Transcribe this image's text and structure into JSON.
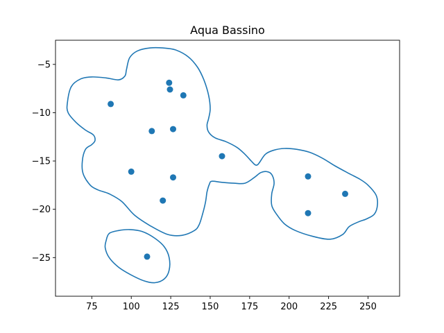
{
  "chart_data": {
    "type": "scatter",
    "title": "Aqua Bassino",
    "xlabel": "",
    "ylabel": "",
    "xlim": [
      52,
      270
    ],
    "ylim": [
      -29,
      -2.5
    ],
    "x_ticks": [
      75,
      100,
      125,
      150,
      175,
      200,
      225,
      250
    ],
    "y_ticks": [
      -5,
      -10,
      -15,
      -20,
      -25
    ],
    "grid": false,
    "legend": "none",
    "colors": {
      "series": "#1f77b4",
      "axes": "#000000",
      "background": "#ffffff"
    },
    "series": [
      {
        "points": [
          {
            "x": 87,
            "y": -9.1
          },
          {
            "x": 124,
            "y": -6.9
          },
          {
            "x": 124.5,
            "y": -7.6
          },
          {
            "x": 133,
            "y": -8.2
          },
          {
            "x": 113,
            "y": -11.9
          },
          {
            "x": 126.5,
            "y": -11.7
          },
          {
            "x": 157.5,
            "y": -14.5
          },
          {
            "x": 100,
            "y": -16.1
          },
          {
            "x": 126.5,
            "y": -16.7
          },
          {
            "x": 120,
            "y": -19.1
          },
          {
            "x": 212,
            "y": -16.6
          },
          {
            "x": 235.5,
            "y": -18.4
          },
          {
            "x": 212,
            "y": -20.4
          },
          {
            "x": 110,
            "y": -24.9
          }
        ]
      }
    ],
    "contours": [
      [
        [
          59.5,
          -9
        ],
        [
          62,
          -7.3
        ],
        [
          68,
          -6.5
        ],
        [
          75,
          -6.3
        ],
        [
          84,
          -6.4
        ],
        [
          92,
          -6.6
        ],
        [
          96,
          -6.2
        ],
        [
          97,
          -5.5
        ],
        [
          99,
          -4.3
        ],
        [
          104,
          -3.6
        ],
        [
          112,
          -3.3
        ],
        [
          120,
          -3.3
        ],
        [
          128,
          -3.5
        ],
        [
          136,
          -4.2
        ],
        [
          142,
          -5.3
        ],
        [
          146,
          -6.6
        ],
        [
          149,
          -8.2
        ],
        [
          150,
          -9.6
        ],
        [
          149,
          -10.6
        ],
        [
          148,
          -11.3
        ],
        [
          149,
          -12
        ],
        [
          153,
          -12.6
        ],
        [
          160,
          -13
        ],
        [
          167,
          -13.6
        ],
        [
          172,
          -14.3
        ],
        [
          176,
          -15
        ],
        [
          178.5,
          -15.4
        ],
        [
          180,
          -15.4
        ],
        [
          181.5,
          -15.1
        ],
        [
          185,
          -14.3
        ],
        [
          190,
          -13.9
        ],
        [
          197,
          -13.7
        ],
        [
          205,
          -13.8
        ],
        [
          213,
          -14.1
        ],
        [
          221,
          -14.7
        ],
        [
          229,
          -15.5
        ],
        [
          238,
          -16.3
        ],
        [
          245,
          -16.9
        ],
        [
          250,
          -17.5
        ],
        [
          255,
          -18.5
        ],
        [
          256,
          -19.5
        ],
        [
          254,
          -20.5
        ],
        [
          249,
          -21
        ],
        [
          244,
          -21.3
        ],
        [
          238,
          -21.8
        ],
        [
          234,
          -22.6
        ],
        [
          226,
          -23.1
        ],
        [
          215,
          -22.8
        ],
        [
          204,
          -22.2
        ],
        [
          197,
          -21.5
        ],
        [
          192,
          -20.5
        ],
        [
          189,
          -19.6
        ],
        [
          189,
          -18.4
        ],
        [
          190.5,
          -17.3
        ],
        [
          189,
          -16.4
        ],
        [
          186,
          -16.1
        ],
        [
          182,
          -16.2
        ],
        [
          178,
          -16.7
        ],
        [
          172,
          -17.3
        ],
        [
          165,
          -17.3
        ],
        [
          157,
          -17.2
        ],
        [
          151,
          -17.1
        ],
        [
          149.5,
          -17.4
        ],
        [
          148,
          -18.2
        ],
        [
          147,
          -19.3
        ],
        [
          145,
          -20.6
        ],
        [
          143,
          -21.6
        ],
        [
          140,
          -22.2
        ],
        [
          132,
          -22.7
        ],
        [
          123,
          -22.6
        ],
        [
          112,
          -21.7
        ],
        [
          102,
          -20.6
        ],
        [
          94,
          -19.2
        ],
        [
          86,
          -18.4
        ],
        [
          79,
          -18
        ],
        [
          74,
          -17.5
        ],
        [
          69.5,
          -16.3
        ],
        [
          69,
          -15
        ],
        [
          71,
          -13.8
        ],
        [
          75,
          -13.3
        ],
        [
          77,
          -12.9
        ],
        [
          76,
          -12.3
        ],
        [
          71,
          -11.8
        ],
        [
          65,
          -11
        ],
        [
          60,
          -10
        ],
        [
          59.5,
          -9
        ]
      ],
      [
        [
          84,
          -23.3
        ],
        [
          86,
          -22.5
        ],
        [
          92,
          -22.2
        ],
        [
          99,
          -22.1
        ],
        [
          107,
          -22.3
        ],
        [
          115,
          -23
        ],
        [
          121,
          -23.9
        ],
        [
          124,
          -25
        ],
        [
          124,
          -26.3
        ],
        [
          121,
          -27.2
        ],
        [
          115,
          -27.6
        ],
        [
          108,
          -27.4
        ],
        [
          100,
          -26.8
        ],
        [
          92,
          -26
        ],
        [
          86,
          -25
        ],
        [
          83.5,
          -24
        ],
        [
          84,
          -23.3
        ]
      ]
    ]
  }
}
